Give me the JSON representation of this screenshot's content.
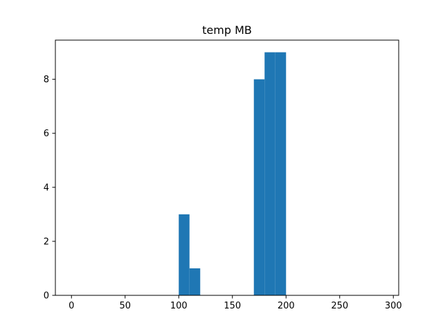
{
  "chart_data": {
    "type": "bar",
    "title": "temp MB",
    "xlabel": "",
    "ylabel": "",
    "xlim": [
      -15,
      305
    ],
    "ylim": [
      0,
      9.45
    ],
    "x_ticks": [
      0,
      50,
      100,
      150,
      200,
      250,
      300
    ],
    "y_ticks": [
      0,
      2,
      4,
      6,
      8
    ],
    "bin_width": 10,
    "bins": [
      {
        "x0": 100,
        "x1": 110,
        "count": 3
      },
      {
        "x0": 110,
        "x1": 120,
        "count": 1
      },
      {
        "x0": 170,
        "x1": 180,
        "count": 8
      },
      {
        "x0": 180,
        "x1": 190,
        "count": 9
      },
      {
        "x0": 190,
        "x1": 200,
        "count": 9
      }
    ],
    "bar_color": "#1f77b4",
    "grid": false,
    "legend": "none"
  }
}
